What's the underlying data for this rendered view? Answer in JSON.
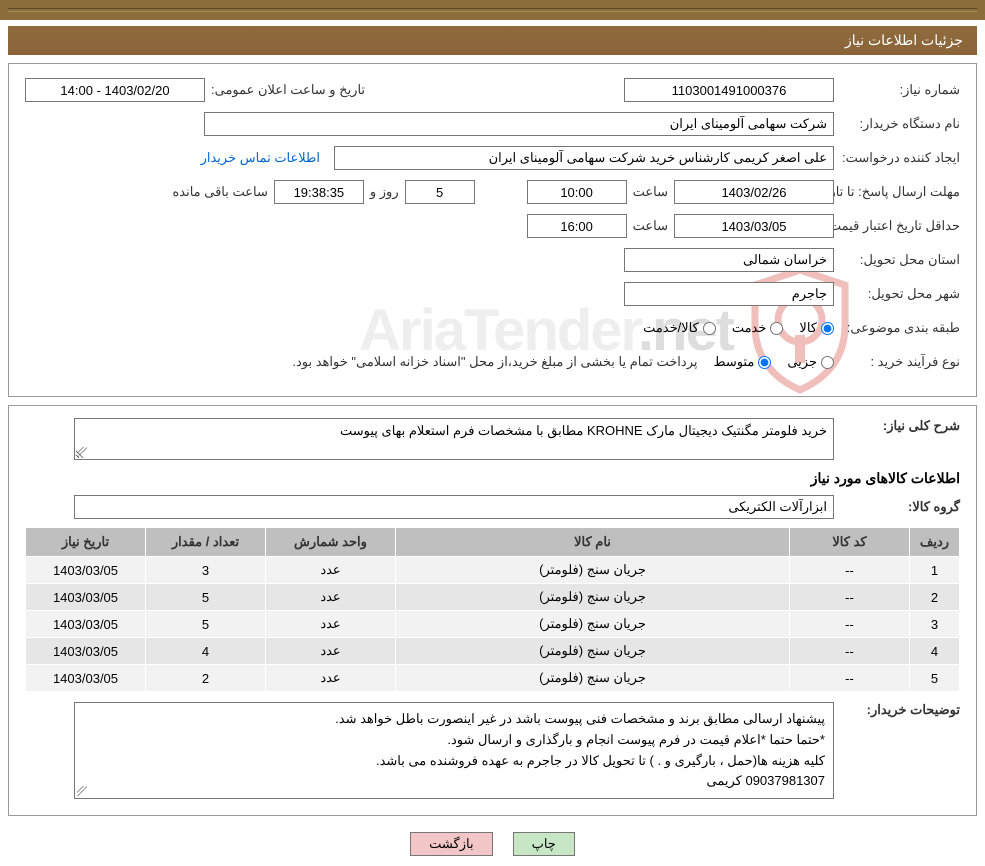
{
  "header": {
    "title": "جزئیات اطلاعات نیاز"
  },
  "need": {
    "number_label": "شماره نیاز:",
    "number": "1103001491000376",
    "announce_label": "تاریخ و ساعت اعلان عمومی:",
    "announce_value": "1403/02/20 - 14:00",
    "buyer_org_label": "نام دستگاه خریدار:",
    "buyer_org": "شرکت سهامی آلومینای ایران",
    "creator_label": "ایجاد کننده درخواست:",
    "creator": "علی اصغر کریمی کارشناس خرید شرکت سهامی آلومینای ایران",
    "buyer_contact_link": "اطلاعات تماس خریدار",
    "deadline_label": "مهلت ارسال پاسخ: تا تاریخ:",
    "deadline_date": "1403/02/26",
    "time_label": "ساعت",
    "deadline_time": "10:00",
    "days_remaining": "5",
    "days_label": "روز و",
    "countdown": "19:38:35",
    "remaining_label": "ساعت باقی مانده",
    "validity_label": "حداقل تاریخ اعتبار قیمت: تا تاریخ:",
    "validity_date": "1403/03/05",
    "validity_time": "16:00",
    "province_label": "استان محل تحویل:",
    "province": "خراسان شمالی",
    "city_label": "شهر محل تحویل:",
    "city": "جاجرم",
    "category_label": "طبقه بندی موضوعی:",
    "cat_goods": "کالا",
    "cat_service": "خدمت",
    "cat_goods_service": "کالا/خدمت",
    "process_label": "نوع فرآیند خرید :",
    "process_partial": "جزیی",
    "process_medium": "متوسط",
    "payment_note": "پرداخت تمام یا بخشی از مبلغ خرید،از محل \"اسناد خزانه اسلامی\" خواهد بود."
  },
  "desc": {
    "title_label": "شرح کلی نیاز:",
    "text": "خرید فلومتر مگنتیک دیجیتال مارک KROHNE مطابق با مشخصات فرم استعلام بهای پیوست",
    "items_heading": "اطلاعات کالاهای مورد نیاز",
    "group_label": "گروه کالا:",
    "group": "ابزارآلات الکتریکی"
  },
  "table": {
    "headers": {
      "row": "ردیف",
      "code": "کد کالا",
      "name": "نام کالا",
      "unit": "واحد شمارش",
      "qty": "تعداد / مقدار",
      "date": "تاریخ نیاز"
    },
    "rows": [
      {
        "row": "1",
        "code": "--",
        "name": "جریان سنج (فلومتر)",
        "unit": "عدد",
        "qty": "3",
        "date": "1403/03/05"
      },
      {
        "row": "2",
        "code": "--",
        "name": "جریان سنج (فلومتر)",
        "unit": "عدد",
        "qty": "5",
        "date": "1403/03/05"
      },
      {
        "row": "3",
        "code": "--",
        "name": "جریان سنج (فلومتر)",
        "unit": "عدد",
        "qty": "5",
        "date": "1403/03/05"
      },
      {
        "row": "4",
        "code": "--",
        "name": "جریان سنج (فلومتر)",
        "unit": "عدد",
        "qty": "4",
        "date": "1403/03/05"
      },
      {
        "row": "5",
        "code": "--",
        "name": "جریان سنج (فلومتر)",
        "unit": "عدد",
        "qty": "2",
        "date": "1403/03/05"
      }
    ]
  },
  "buyer_notes": {
    "label": "توضیحات خریدار:",
    "line1": "پیشنهاد ارسالی مطابق برند و مشخصات فنی پیوست باشد در غیر اینصورت باطل خواهد شد.",
    "line2": "*حتما حتما *اعلام قیمت در فرم پیوست انجام و بارگذاری و ارسال شود.",
    "line3": "کلیه هزینه ها(حمل ، بارگیری و . ) تا تحویل کالا در جاجرم به عهده فروشنده می باشد.",
    "line4": "09037981307 کریمی"
  },
  "buttons": {
    "print": "چاپ",
    "back": "بازگشت"
  },
  "watermark": {
    "text1": "AriaTender",
    "text2": ".net"
  },
  "colors": {
    "header_bg": "#8f6b3e",
    "top_bar": "#8a6d3b",
    "border": "#999999",
    "table_header": "#bfbfbf",
    "row_odd": "#f2f2f2",
    "row_even": "#e6e6e6",
    "btn_print": "#c6e6c6",
    "btn_back": "#f2c6c6",
    "link": "#0066cc",
    "shield": "#d84a3f"
  }
}
